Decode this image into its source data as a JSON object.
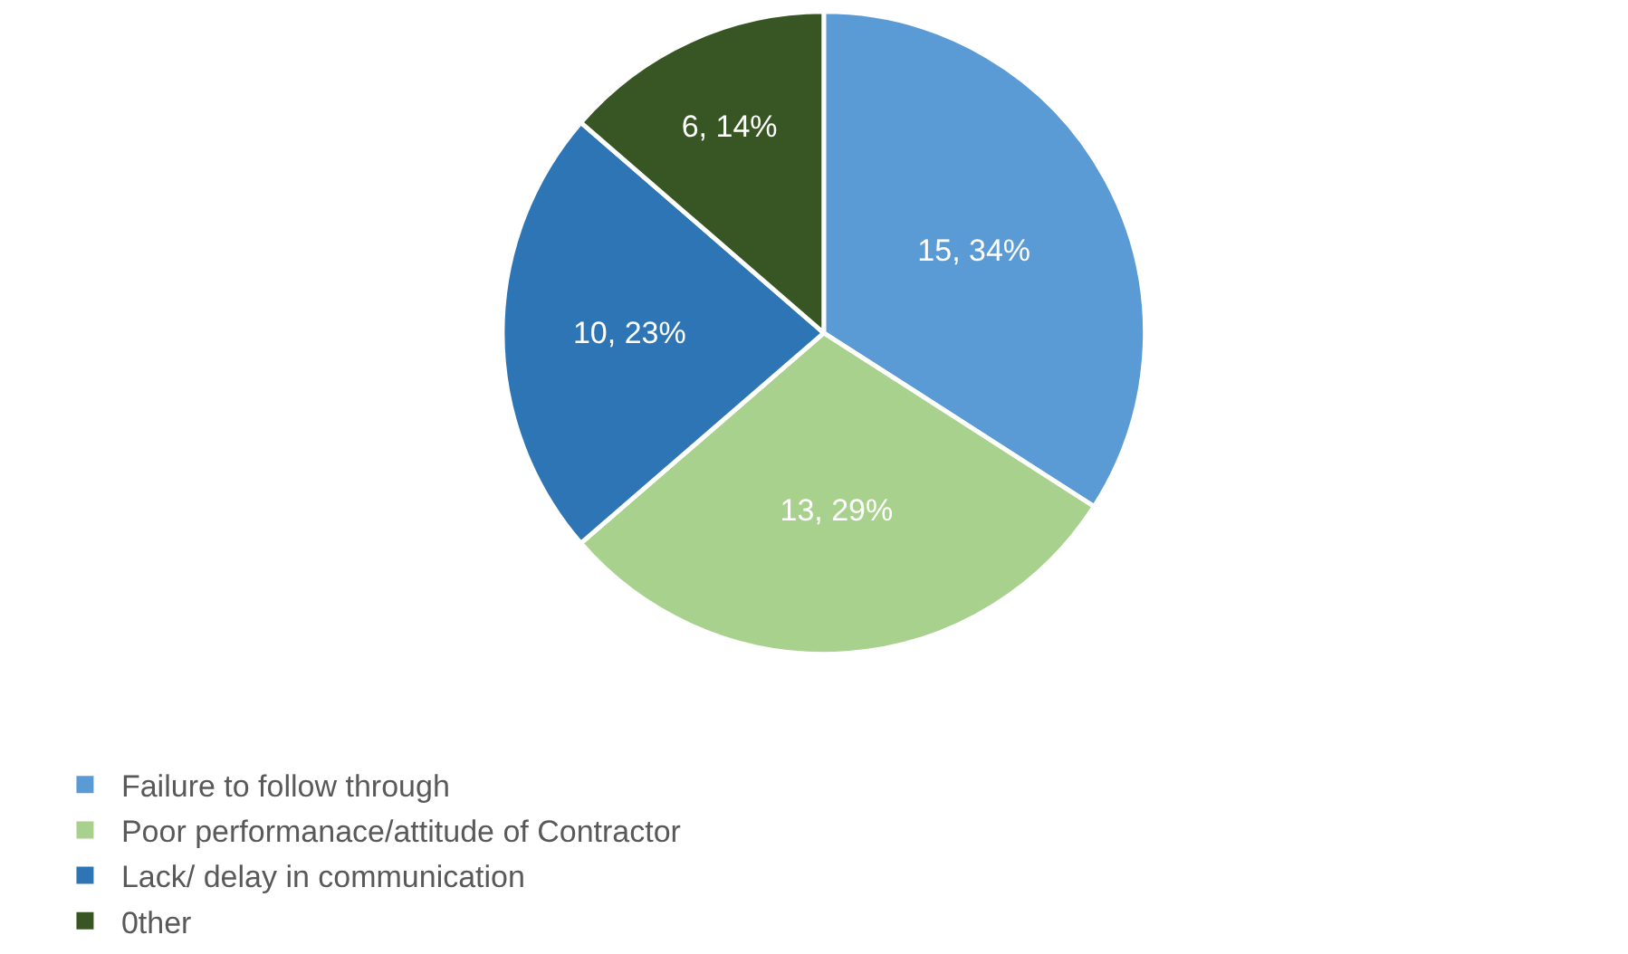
{
  "chart_data": {
    "type": "pie",
    "categories": [
      "Failure to follow through",
      "Poor performanace/attitude of Contractor",
      "Lack/ delay in communication",
      "0ther"
    ],
    "values": [
      15,
      13,
      10,
      6
    ],
    "colors": [
      "#5b9bd5",
      "#a9d18e",
      "#2e75b6",
      "#375623"
    ],
    "value_labels": [
      "15, 34%",
      "13, 29%",
      "10, 23%",
      "6, 14%"
    ],
    "legend": "bottom"
  }
}
